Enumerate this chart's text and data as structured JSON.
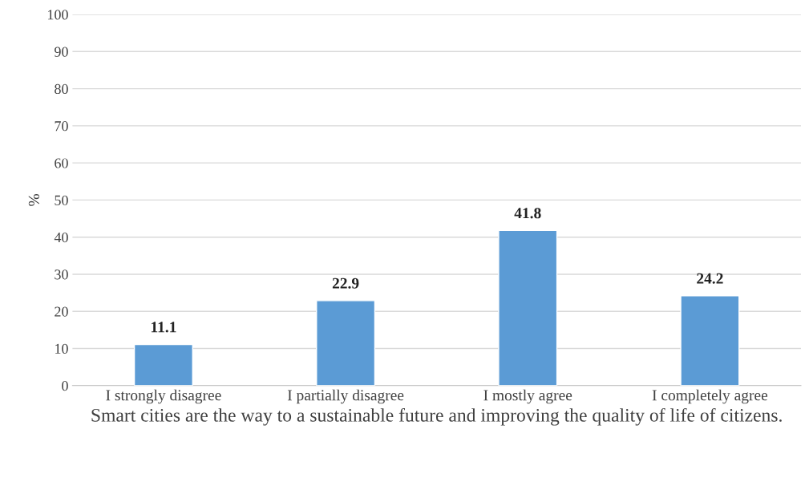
{
  "chart_data": {
    "type": "bar",
    "xlabel": "Smart cities are the way to a sustainable future and improving the quality of life of citizens.",
    "ylabel": "%",
    "categories": [
      "I strongly disagree",
      "I partially disagree",
      "I mostly agree",
      "I completely agree"
    ],
    "values": [
      11.1,
      22.9,
      41.8,
      24.2
    ],
    "color": "#5b9bd5",
    "ylim": [
      0,
      100
    ],
    "yticks": [
      0,
      10,
      20,
      30,
      40,
      50,
      60,
      70,
      80,
      90,
      100
    ],
    "grid": "y",
    "data_labels": true
  }
}
